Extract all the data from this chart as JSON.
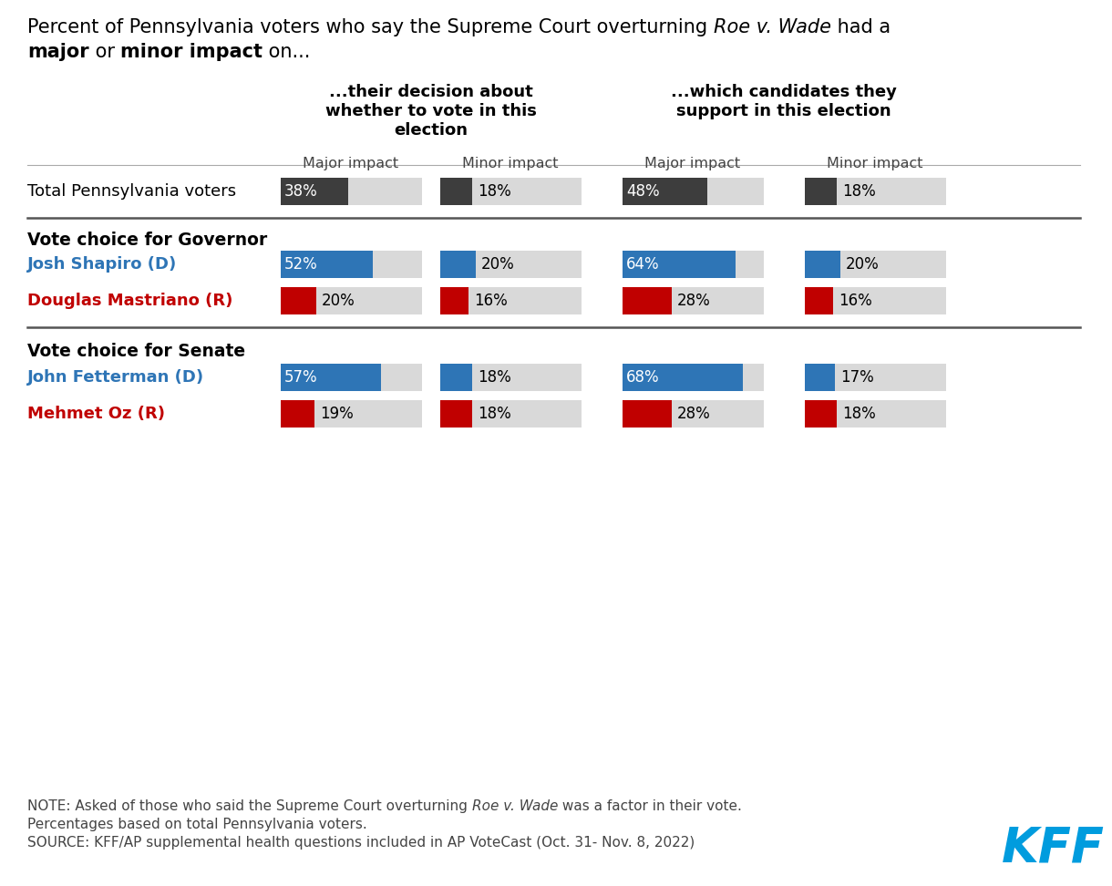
{
  "rows": [
    {
      "label": "Total Pennsylvania voters",
      "color": "#3d3d3d",
      "label_color": "#000000",
      "bold": false,
      "values": [
        38,
        18,
        48,
        18
      ]
    },
    {
      "label": "Vote choice for Governor",
      "section_header": true
    },
    {
      "label": "Josh Shapiro (D)",
      "color": "#2E75B6",
      "label_color": "#2E75B6",
      "bold": true,
      "values": [
        52,
        20,
        64,
        20
      ]
    },
    {
      "label": "Douglas Mastriano (R)",
      "color": "#C00000",
      "label_color": "#C00000",
      "bold": true,
      "values": [
        20,
        16,
        28,
        16
      ]
    },
    {
      "label": "Vote choice for Senate",
      "section_header": true
    },
    {
      "label": "John Fetterman (D)",
      "color": "#2E75B6",
      "label_color": "#2E75B6",
      "bold": true,
      "values": [
        57,
        18,
        68,
        17
      ]
    },
    {
      "label": "Mehmet Oz (R)",
      "color": "#C00000",
      "label_color": "#C00000",
      "bold": true,
      "values": [
        19,
        18,
        28,
        18
      ]
    }
  ],
  "col_header1": "...their decision about\nwhether to vote in this\nelection",
  "col_header2": "...which candidates they\nsupport in this election",
  "subheaders": [
    "Major impact",
    "Minor impact",
    "Major impact",
    "Minor impact"
  ],
  "bar_bg_color": "#d9d9d9",
  "bar_max_val": 80,
  "note_text": "NOTE: Asked of those who said the Supreme Court overturning ",
  "note_italic": "Roe v. Wade",
  "note_end": " was a factor in their vote.",
  "note_line2": "Percentages based on total Pennsylvania voters.",
  "source_line": "SOURCE: KFF/AP supplemental health questions included in AP VoteCast (Oct. 31- Nov. 8, 2022)",
  "kff_color": "#009CDE",
  "background_color": "#ffffff",
  "separator_color": "#555555",
  "light_sep_color": "#aaaaaa"
}
